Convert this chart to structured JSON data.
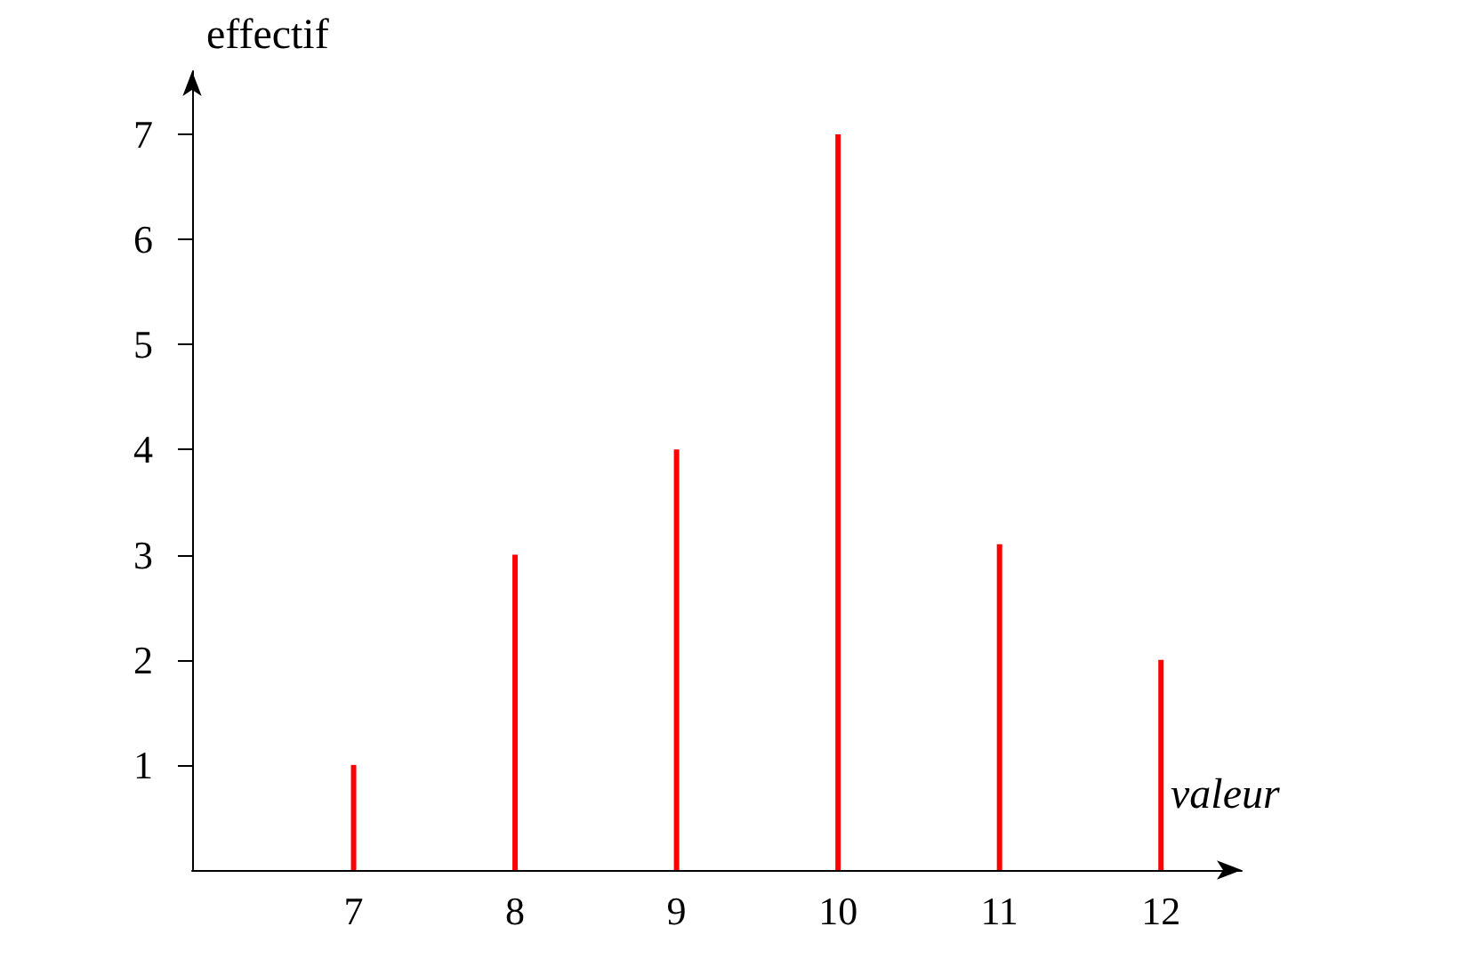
{
  "chart_data": {
    "type": "bar",
    "xlabel": "valeur",
    "ylabel": "effectif",
    "x": [
      7,
      8,
      9,
      10,
      11,
      12
    ],
    "values": [
      1,
      3,
      4,
      7,
      3.1,
      2
    ],
    "color": "#ff0000",
    "xlim": [
      6,
      12.5
    ],
    "ylim": [
      0,
      7.6
    ],
    "xticks": [
      7,
      8,
      9,
      10,
      11,
      12
    ],
    "yticks": [
      1,
      2,
      3,
      4,
      5,
      6,
      7
    ]
  }
}
